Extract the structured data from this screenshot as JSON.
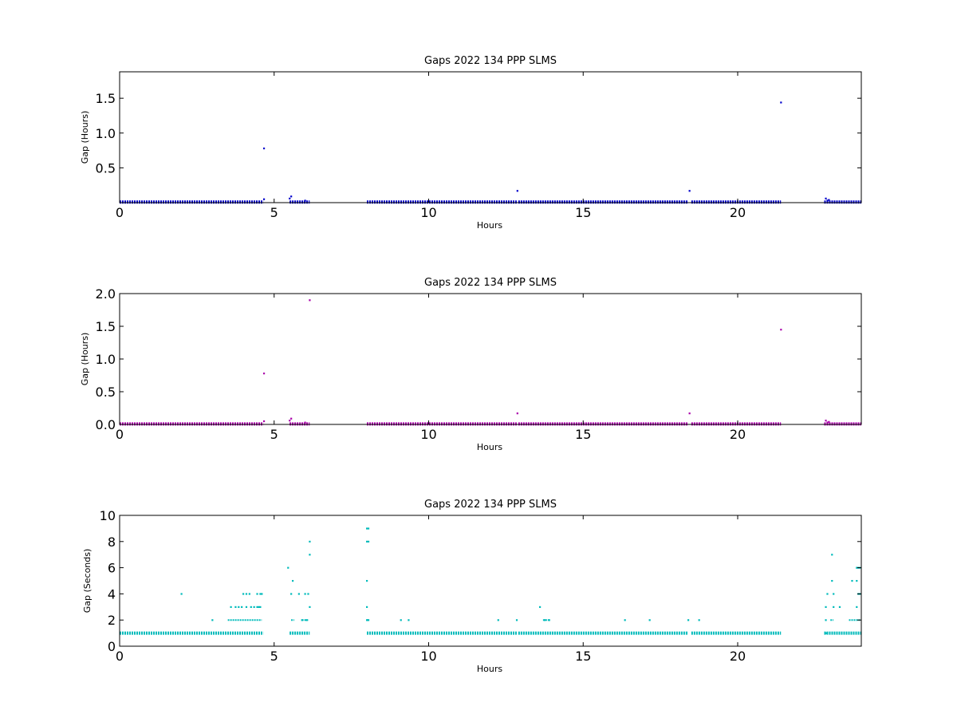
{
  "chart_data": [
    {
      "type": "scatter",
      "title": "Gaps 2022 134 PPP  SLMS",
      "xlabel": "Hours",
      "ylabel": "Gap (Hours)",
      "xlim": [
        0,
        24
      ],
      "ylim": [
        0,
        1.88
      ],
      "xticks": [
        0,
        5,
        10,
        15,
        20
      ],
      "yticks": [
        0.5,
        1.0,
        1.5
      ],
      "ytick_labels": [
        "0.5",
        "1.0",
        "1.5"
      ],
      "grid": false,
      "color": "#0000cc",
      "series": [
        {
          "baseline_y": 0.0083,
          "baseline_segments": [
            [
              0.0,
              4.65
            ],
            [
              5.5,
              6.15
            ],
            [
              8.0,
              12.85
            ],
            [
              12.9,
              18.4
            ],
            [
              18.5,
              21.4
            ],
            [
              22.8,
              24.0
            ]
          ],
          "points": [
            {
              "x": 4.67,
              "y": 0.78
            },
            {
              "x": 4.67,
              "y": 0.05
            },
            {
              "x": 5.5,
              "y": 0.06
            },
            {
              "x": 5.55,
              "y": 0.09
            },
            {
              "x": 6.0,
              "y": 0.03
            },
            {
              "x": 12.87,
              "y": 0.17
            },
            {
              "x": 18.44,
              "y": 0.17
            },
            {
              "x": 21.4,
              "y": 1.44
            },
            {
              "x": 22.85,
              "y": 0.06
            },
            {
              "x": 22.95,
              "y": 0.04
            },
            {
              "x": 22.9,
              "y": 0.03
            }
          ]
        }
      ]
    },
    {
      "type": "scatter",
      "title": "Gaps 2022 134 PPP  SLMS",
      "xlabel": "Hours",
      "ylabel": "Gap (Hours)",
      "xlim": [
        0,
        24
      ],
      "ylim": [
        0,
        2.0
      ],
      "xticks": [
        0,
        5,
        10,
        15,
        20
      ],
      "yticks": [
        0.0,
        0.5,
        1.0,
        1.5,
        2.0
      ],
      "ytick_labels": [
        "0.0",
        "0.5",
        "1.0",
        "1.5",
        "2.0"
      ],
      "grid": false,
      "color": "#aa00aa",
      "series": [
        {
          "baseline_y": 0.0083,
          "baseline_segments": [
            [
              0.0,
              4.65
            ],
            [
              5.5,
              6.15
            ],
            [
              8.0,
              12.85
            ],
            [
              12.9,
              18.4
            ],
            [
              18.5,
              21.4
            ],
            [
              22.8,
              24.0
            ]
          ],
          "points": [
            {
              "x": 4.67,
              "y": 0.78
            },
            {
              "x": 4.67,
              "y": 0.05
            },
            {
              "x": 5.5,
              "y": 0.06
            },
            {
              "x": 5.55,
              "y": 0.09
            },
            {
              "x": 6.15,
              "y": 1.9
            },
            {
              "x": 6.0,
              "y": 0.03
            },
            {
              "x": 12.87,
              "y": 0.17
            },
            {
              "x": 18.44,
              "y": 0.17
            },
            {
              "x": 21.4,
              "y": 1.45
            },
            {
              "x": 22.85,
              "y": 0.06
            },
            {
              "x": 22.95,
              "y": 0.04
            },
            {
              "x": 22.9,
              "y": 0.03
            }
          ]
        }
      ]
    },
    {
      "type": "scatter",
      "title": "Gaps 2022 134 PPP  SLMS",
      "xlabel": "Hours",
      "ylabel": "Gap (Seconds)",
      "xlim": [
        0,
        24
      ],
      "ylim": [
        0,
        10
      ],
      "xticks": [
        0,
        5,
        10,
        15,
        20
      ],
      "yticks": [
        0,
        2,
        4,
        6,
        8,
        10
      ],
      "ytick_labels": [
        "0",
        "2",
        "4",
        "6",
        "8",
        "10"
      ],
      "grid": false,
      "color": "#00bbbb",
      "series": [
        {
          "baseline_y": 1,
          "baseline_segments": [
            [
              0.0,
              4.65
            ],
            [
              5.5,
              6.15
            ],
            [
              8.0,
              12.85
            ],
            [
              12.9,
              18.4
            ],
            [
              18.5,
              21.4
            ],
            [
              22.8,
              24.0
            ]
          ],
          "segments_y2": [
            [
              3.5,
              4.6
            ],
            [
              5.55,
              5.65
            ],
            [
              5.9,
              6.1
            ],
            [
              8.0,
              8.05
            ],
            [
              13.7,
              13.9
            ],
            [
              23.0,
              23.1
            ],
            [
              23.6,
              24.0
            ]
          ],
          "points": [
            {
              "x": 2.0,
              "y": 4
            },
            {
              "x": 3.0,
              "y": 2
            },
            {
              "x": 3.6,
              "y": 3
            },
            {
              "x": 3.75,
              "y": 3
            },
            {
              "x": 3.85,
              "y": 3
            },
            {
              "x": 3.95,
              "y": 3
            },
            {
              "x": 4.0,
              "y": 4
            },
            {
              "x": 4.1,
              "y": 4
            },
            {
              "x": 4.2,
              "y": 4
            },
            {
              "x": 4.1,
              "y": 3
            },
            {
              "x": 4.25,
              "y": 3
            },
            {
              "x": 4.35,
              "y": 3
            },
            {
              "x": 4.45,
              "y": 3
            },
            {
              "x": 4.5,
              "y": 3
            },
            {
              "x": 4.55,
              "y": 3
            },
            {
              "x": 4.45,
              "y": 4
            },
            {
              "x": 4.55,
              "y": 4
            },
            {
              "x": 4.6,
              "y": 4
            },
            {
              "x": 5.45,
              "y": 6
            },
            {
              "x": 5.55,
              "y": 4
            },
            {
              "x": 5.6,
              "y": 5
            },
            {
              "x": 5.8,
              "y": 4
            },
            {
              "x": 6.0,
              "y": 4
            },
            {
              "x": 6.1,
              "y": 4
            },
            {
              "x": 6.15,
              "y": 7
            },
            {
              "x": 6.15,
              "y": 8
            },
            {
              "x": 6.15,
              "y": 3
            },
            {
              "x": 5.9,
              "y": 2
            },
            {
              "x": 6.05,
              "y": 2
            },
            {
              "x": 8.0,
              "y": 9
            },
            {
              "x": 8.05,
              "y": 9
            },
            {
              "x": 8.0,
              "y": 8
            },
            {
              "x": 8.05,
              "y": 8
            },
            {
              "x": 8.0,
              "y": 5
            },
            {
              "x": 8.0,
              "y": 3
            },
            {
              "x": 8.0,
              "y": 2
            },
            {
              "x": 8.05,
              "y": 2
            },
            {
              "x": 9.1,
              "y": 2
            },
            {
              "x": 9.35,
              "y": 2
            },
            {
              "x": 12.25,
              "y": 2
            },
            {
              "x": 12.85,
              "y": 2
            },
            {
              "x": 13.6,
              "y": 3
            },
            {
              "x": 13.75,
              "y": 2
            },
            {
              "x": 13.9,
              "y": 2
            },
            {
              "x": 16.35,
              "y": 2
            },
            {
              "x": 17.15,
              "y": 2
            },
            {
              "x": 18.4,
              "y": 2
            },
            {
              "x": 18.75,
              "y": 2
            },
            {
              "x": 22.85,
              "y": 3
            },
            {
              "x": 22.9,
              "y": 4
            },
            {
              "x": 23.05,
              "y": 7
            },
            {
              "x": 23.05,
              "y": 5
            },
            {
              "x": 23.1,
              "y": 4
            },
            {
              "x": 23.1,
              "y": 3
            },
            {
              "x": 23.3,
              "y": 3
            },
            {
              "x": 23.7,
              "y": 5
            },
            {
              "x": 23.85,
              "y": 5
            },
            {
              "x": 23.85,
              "y": 6
            },
            {
              "x": 23.9,
              "y": 6
            },
            {
              "x": 23.95,
              "y": 6
            },
            {
              "x": 23.9,
              "y": 4
            },
            {
              "x": 23.95,
              "y": 4
            },
            {
              "x": 23.85,
              "y": 3
            },
            {
              "x": 22.85,
              "y": 2
            },
            {
              "x": 22.85,
              "y": 1
            }
          ]
        }
      ]
    }
  ]
}
